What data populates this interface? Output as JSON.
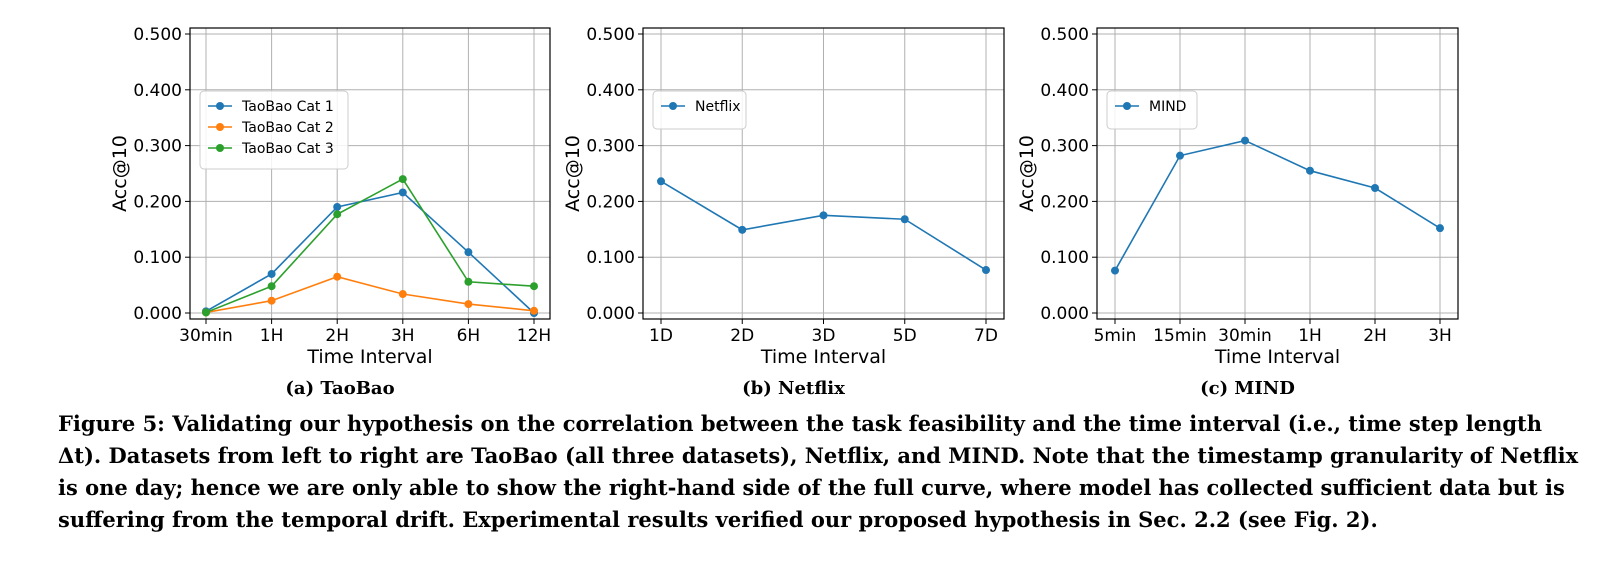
{
  "chart_data": [
    {
      "type": "line",
      "subcaption": "(a) TaoBao",
      "xlabel": "Time Interval",
      "ylabel": "Acc@10",
      "categories": [
        "30min",
        "1H",
        "2H",
        "3H",
        "6H",
        "12H"
      ],
      "ylim": [
        0,
        0.5
      ],
      "yticks": [
        "0.000",
        "0.100",
        "0.200",
        "0.300",
        "0.400",
        "0.500"
      ],
      "grid": true,
      "legend_position": "upper-left",
      "series": [
        {
          "name": "TaoBao Cat 1",
          "color": "#1f77b4",
          "values": [
            0.003,
            0.07,
            0.19,
            0.216,
            0.109,
            0.0
          ]
        },
        {
          "name": "TaoBao Cat 2",
          "color": "#ff7f0e",
          "values": [
            0.001,
            0.022,
            0.065,
            0.034,
            0.016,
            0.004
          ]
        },
        {
          "name": "TaoBao Cat 3",
          "color": "#2ca02c",
          "values": [
            0.001,
            0.048,
            0.177,
            0.24,
            0.056,
            0.048
          ]
        }
      ]
    },
    {
      "type": "line",
      "subcaption": "(b) Netflix",
      "xlabel": "Time Interval",
      "ylabel": "Acc@10",
      "categories": [
        "1D",
        "2D",
        "3D",
        "5D",
        "7D"
      ],
      "ylim": [
        0,
        0.5
      ],
      "yticks": [
        "0.000",
        "0.100",
        "0.200",
        "0.300",
        "0.400",
        "0.500"
      ],
      "grid": true,
      "legend_position": "upper-left",
      "series": [
        {
          "name": "Netflix",
          "color": "#1f77b4",
          "values": [
            0.236,
            0.149,
            0.175,
            0.168,
            0.077
          ]
        }
      ]
    },
    {
      "type": "line",
      "subcaption": "(c) MIND",
      "xlabel": "Time Interval",
      "ylabel": "Acc@10",
      "categories": [
        "5min",
        "15min",
        "30min",
        "1H",
        "2H",
        "3H"
      ],
      "ylim": [
        0,
        0.5
      ],
      "yticks": [
        "0.000",
        "0.100",
        "0.200",
        "0.300",
        "0.400",
        "0.500"
      ],
      "grid": true,
      "legend_position": "upper-left",
      "series": [
        {
          "name": "MIND",
          "color": "#1f77b4",
          "values": [
            0.076,
            0.282,
            0.309,
            0.255,
            0.224,
            0.152
          ]
        }
      ]
    }
  ],
  "caption": {
    "lines": [
      "Figure 5: Validating our hypothesis on the correlation between the task feasibility and the time interval (i.e., time step length",
      "Δt). Datasets from left to right are TaoBao (all three datasets), Netflix, and MIND. Note that the timestamp granularity of Netflix",
      "is one day; hence we are only able to show the right-hand side of the full curve, where model has collected sufficient data but is",
      "suffering from the temporal drift. Experimental results verified our proposed hypothesis in Sec. 2.2 (see Fig. 2)."
    ]
  }
}
